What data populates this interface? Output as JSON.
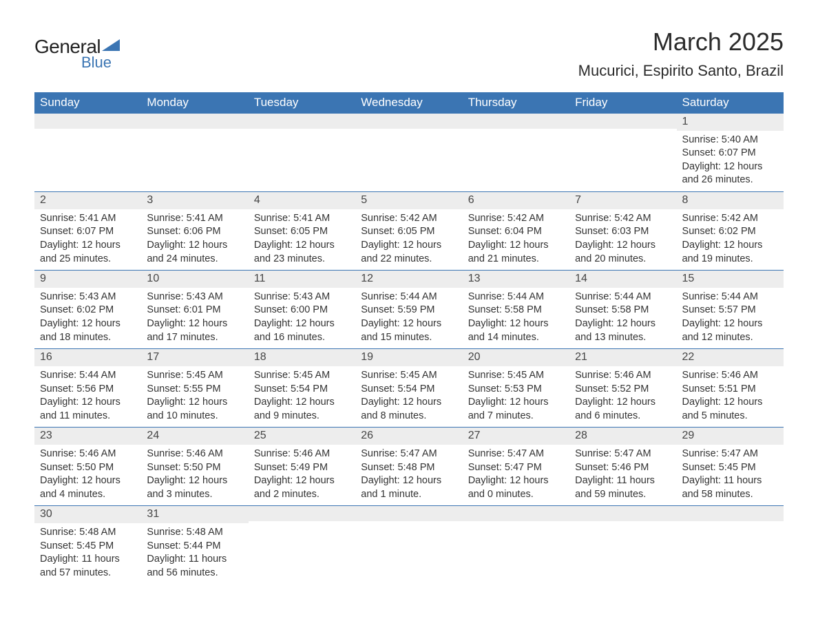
{
  "logo": {
    "word1": "General",
    "word2": "Blue",
    "text_color": "#222222",
    "accent_color": "#3b75b3"
  },
  "title": {
    "month_year": "March 2025",
    "location": "Mucurici, Espirito Santo, Brazil",
    "title_fontsize": 36,
    "location_fontsize": 22,
    "text_color": "#2b2b2b"
  },
  "table": {
    "header_bg": "#3b75b3",
    "header_text_color": "#ffffff",
    "row_border_color": "#3b75b3",
    "daynum_bg": "#ededed",
    "cell_text_color": "#333333",
    "columns": [
      "Sunday",
      "Monday",
      "Tuesday",
      "Wednesday",
      "Thursday",
      "Friday",
      "Saturday"
    ]
  },
  "weeks": [
    [
      null,
      null,
      null,
      null,
      null,
      null,
      {
        "n": "1",
        "sunrise": "5:40 AM",
        "sunset": "6:07 PM",
        "daylight": "12 hours and 26 minutes."
      }
    ],
    [
      {
        "n": "2",
        "sunrise": "5:41 AM",
        "sunset": "6:07 PM",
        "daylight": "12 hours and 25 minutes."
      },
      {
        "n": "3",
        "sunrise": "5:41 AM",
        "sunset": "6:06 PM",
        "daylight": "12 hours and 24 minutes."
      },
      {
        "n": "4",
        "sunrise": "5:41 AM",
        "sunset": "6:05 PM",
        "daylight": "12 hours and 23 minutes."
      },
      {
        "n": "5",
        "sunrise": "5:42 AM",
        "sunset": "6:05 PM",
        "daylight": "12 hours and 22 minutes."
      },
      {
        "n": "6",
        "sunrise": "5:42 AM",
        "sunset": "6:04 PM",
        "daylight": "12 hours and 21 minutes."
      },
      {
        "n": "7",
        "sunrise": "5:42 AM",
        "sunset": "6:03 PM",
        "daylight": "12 hours and 20 minutes."
      },
      {
        "n": "8",
        "sunrise": "5:42 AM",
        "sunset": "6:02 PM",
        "daylight": "12 hours and 19 minutes."
      }
    ],
    [
      {
        "n": "9",
        "sunrise": "5:43 AM",
        "sunset": "6:02 PM",
        "daylight": "12 hours and 18 minutes."
      },
      {
        "n": "10",
        "sunrise": "5:43 AM",
        "sunset": "6:01 PM",
        "daylight": "12 hours and 17 minutes."
      },
      {
        "n": "11",
        "sunrise": "5:43 AM",
        "sunset": "6:00 PM",
        "daylight": "12 hours and 16 minutes."
      },
      {
        "n": "12",
        "sunrise": "5:44 AM",
        "sunset": "5:59 PM",
        "daylight": "12 hours and 15 minutes."
      },
      {
        "n": "13",
        "sunrise": "5:44 AM",
        "sunset": "5:58 PM",
        "daylight": "12 hours and 14 minutes."
      },
      {
        "n": "14",
        "sunrise": "5:44 AM",
        "sunset": "5:58 PM",
        "daylight": "12 hours and 13 minutes."
      },
      {
        "n": "15",
        "sunrise": "5:44 AM",
        "sunset": "5:57 PM",
        "daylight": "12 hours and 12 minutes."
      }
    ],
    [
      {
        "n": "16",
        "sunrise": "5:44 AM",
        "sunset": "5:56 PM",
        "daylight": "12 hours and 11 minutes."
      },
      {
        "n": "17",
        "sunrise": "5:45 AM",
        "sunset": "5:55 PM",
        "daylight": "12 hours and 10 minutes."
      },
      {
        "n": "18",
        "sunrise": "5:45 AM",
        "sunset": "5:54 PM",
        "daylight": "12 hours and 9 minutes."
      },
      {
        "n": "19",
        "sunrise": "5:45 AM",
        "sunset": "5:54 PM",
        "daylight": "12 hours and 8 minutes."
      },
      {
        "n": "20",
        "sunrise": "5:45 AM",
        "sunset": "5:53 PM",
        "daylight": "12 hours and 7 minutes."
      },
      {
        "n": "21",
        "sunrise": "5:46 AM",
        "sunset": "5:52 PM",
        "daylight": "12 hours and 6 minutes."
      },
      {
        "n": "22",
        "sunrise": "5:46 AM",
        "sunset": "5:51 PM",
        "daylight": "12 hours and 5 minutes."
      }
    ],
    [
      {
        "n": "23",
        "sunrise": "5:46 AM",
        "sunset": "5:50 PM",
        "daylight": "12 hours and 4 minutes."
      },
      {
        "n": "24",
        "sunrise": "5:46 AM",
        "sunset": "5:50 PM",
        "daylight": "12 hours and 3 minutes."
      },
      {
        "n": "25",
        "sunrise": "5:46 AM",
        "sunset": "5:49 PM",
        "daylight": "12 hours and 2 minutes."
      },
      {
        "n": "26",
        "sunrise": "5:47 AM",
        "sunset": "5:48 PM",
        "daylight": "12 hours and 1 minute."
      },
      {
        "n": "27",
        "sunrise": "5:47 AM",
        "sunset": "5:47 PM",
        "daylight": "12 hours and 0 minutes."
      },
      {
        "n": "28",
        "sunrise": "5:47 AM",
        "sunset": "5:46 PM",
        "daylight": "11 hours and 59 minutes."
      },
      {
        "n": "29",
        "sunrise": "5:47 AM",
        "sunset": "5:45 PM",
        "daylight": "11 hours and 58 minutes."
      }
    ],
    [
      {
        "n": "30",
        "sunrise": "5:48 AM",
        "sunset": "5:45 PM",
        "daylight": "11 hours and 57 minutes."
      },
      {
        "n": "31",
        "sunrise": "5:48 AM",
        "sunset": "5:44 PM",
        "daylight": "11 hours and 56 minutes."
      },
      null,
      null,
      null,
      null,
      null
    ]
  ],
  "labels": {
    "sunrise_prefix": "Sunrise: ",
    "sunset_prefix": "Sunset: ",
    "daylight_prefix": "Daylight: "
  }
}
